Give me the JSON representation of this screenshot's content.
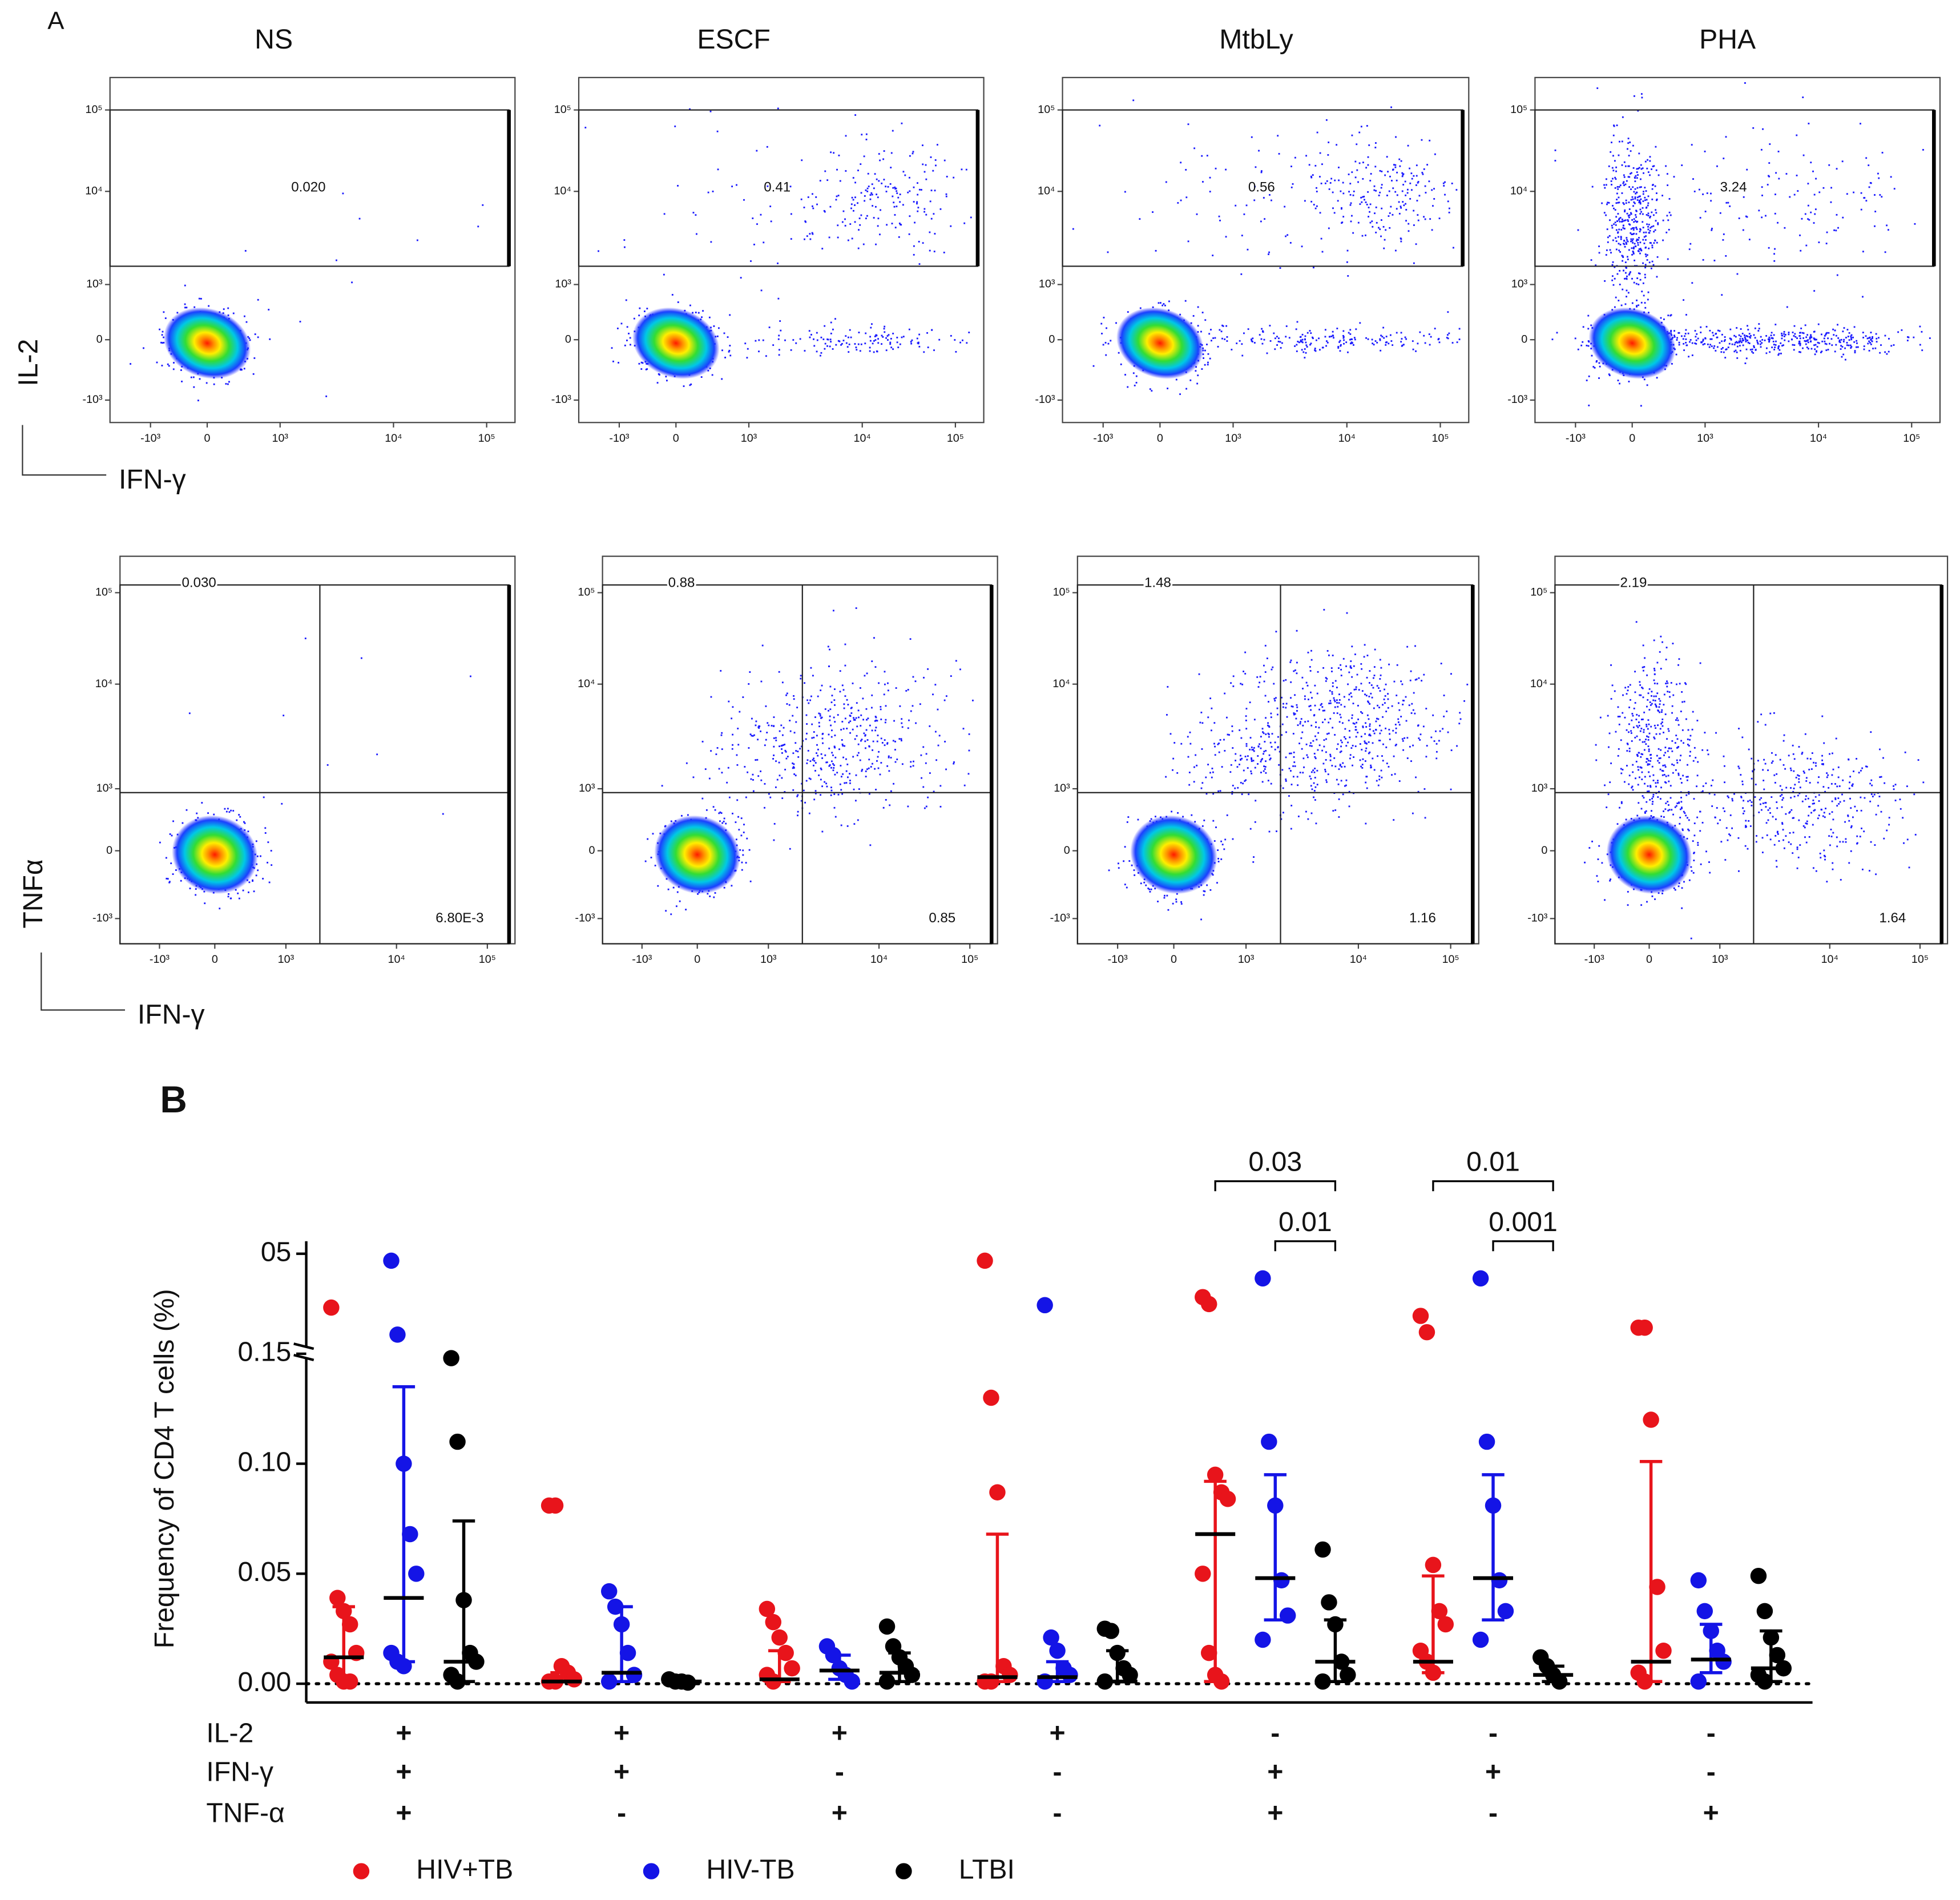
{
  "panel_labels": {
    "a": "A",
    "b": "B"
  },
  "flow_panel": {
    "stimuli": [
      "NS",
      "ESCF",
      "MtbLy",
      "PHA"
    ],
    "axis_tick_labels": [
      "-10³",
      "0",
      "10³",
      "10⁴",
      "10⁵"
    ],
    "x_axis_label": "IFN-γ",
    "rows": [
      {
        "y_axis_label": "IL-2",
        "gate_values": [
          "0.020",
          "0.41",
          "0.56",
          "3.24"
        ]
      },
      {
        "y_axis_label": "TNFα",
        "upper_left_values": [
          "0.030",
          "0.88",
          "1.48",
          "2.19"
        ],
        "lower_right_values": [
          "6.80E-3",
          "0.85",
          "1.16",
          "1.64"
        ]
      }
    ]
  },
  "chart_data": {
    "type": "dot",
    "y_label": "Frequency of CD4 T cells  (%)",
    "ylim": [
      0,
      0.5
    ],
    "axis_break": 0.15,
    "yticks": [
      {
        "value": 0,
        "label": "0.00"
      },
      {
        "value": 0.05,
        "label": "0.05"
      },
      {
        "value": 0.1,
        "label": "0.10"
      },
      0.15,
      {
        "value": 0.5,
        "label": "05"
      }
    ],
    "cytokines": [
      {
        "name": "IL-2",
        "signs": [
          "+",
          "+",
          "+",
          "+",
          "-",
          "-",
          "-"
        ]
      },
      {
        "name": "IFN-γ",
        "signs": [
          "+",
          "+",
          "-",
          "-",
          "+",
          "+",
          "-"
        ]
      },
      {
        "name": "TNF-α",
        "signs": [
          "+",
          "-",
          "+",
          "-",
          "+",
          "-",
          "+"
        ]
      }
    ],
    "series": [
      {
        "name": "HIV+TB",
        "color": "#e8141b",
        "values": [
          [
            0.299,
            0.039,
            0.033,
            0.027,
            0.014,
            0.01,
            0.004,
            0.001,
            0.001
          ],
          [
            0.081,
            0.081,
            0.008,
            0.005,
            0.002,
            0.001,
            0.001
          ],
          [
            0.034,
            0.028,
            0.021,
            0.014,
            0.007,
            0.004,
            0.001
          ],
          [
            0.474,
            0.13,
            0.087,
            0.008,
            0.004,
            0.001,
            0.001
          ],
          [
            0.338,
            0.312,
            0.095,
            0.087,
            0.084,
            0.05,
            0.014,
            0.004,
            0.001
          ],
          [
            0.268,
            0.207,
            0.054,
            0.033,
            0.027,
            0.015,
            0.01,
            0.005
          ],
          [
            0.224,
            0.224,
            0.12,
            0.044,
            0.015,
            0.005,
            0.001
          ]
        ],
        "medians": [
          0.012,
          0.001,
          0.002,
          0.003,
          0.068,
          0.01,
          0.01
        ],
        "error_low": [
          0.002,
          0.001,
          0.001,
          0.001,
          0.001,
          0.005,
          0.001
        ],
        "error_high": [
          0.035,
          0.005,
          0.015,
          0.068,
          0.092,
          0.049,
          0.101
        ]
      },
      {
        "name": "HIV-TB",
        "color": "#1414e6",
        "values": [
          [
            0.474,
            0.198,
            0.1,
            0.068,
            0.05,
            0.014,
            0.01,
            0.008
          ],
          [
            0.042,
            0.035,
            0.027,
            0.014,
            0.004,
            0.001
          ],
          [
            0.017,
            0.013,
            0.007,
            0.004,
            0.001
          ],
          [
            0.308,
            0.021,
            0.015,
            0.007,
            0.004,
            0.001
          ],
          [
            0.408,
            0.11,
            0.081,
            0.047,
            0.031,
            0.02
          ],
          [
            0.408,
            0.11,
            0.081,
            0.047,
            0.033,
            0.02
          ],
          [
            0.047,
            0.033,
            0.024,
            0.015,
            0.01,
            0.001
          ]
        ],
        "medians": [
          0.039,
          0.005,
          0.006,
          0.003,
          0.048,
          0.048,
          0.011
        ],
        "error_low": [
          0.01,
          0.001,
          0.002,
          0.001,
          0.029,
          0.029,
          0.005
        ],
        "error_high": [
          0.135,
          0.035,
          0.013,
          0.01,
          0.095,
          0.095,
          0.027
        ]
      },
      {
        "name": "LTBI",
        "color": "#000000",
        "values": [
          [
            0.148,
            0.11,
            0.038,
            0.014,
            0.01,
            0.004,
            0.001
          ],
          [
            0.002,
            0.001,
            0.001,
            0.0005
          ],
          [
            0.026,
            0.017,
            0.012,
            0.008,
            0.004,
            0.001
          ],
          [
            0.025,
            0.024,
            0.014,
            0.007,
            0.004,
            0.001
          ],
          [
            0.061,
            0.037,
            0.027,
            0.01,
            0.004,
            0.001
          ],
          [
            0.012,
            0.008,
            0.004,
            0.001
          ],
          [
            0.049,
            0.033,
            0.021,
            0.013,
            0.007,
            0.004,
            0.001
          ]
        ],
        "medians": [
          0.01,
          0.001,
          0.005,
          0.001,
          0.01,
          0.004,
          0.007
        ],
        "error_low": [
          0.001,
          0.0005,
          0.001,
          0.001,
          0.001,
          0.001,
          0.001
        ],
        "error_high": [
          0.074,
          0.002,
          0.014,
          0.015,
          0.029,
          0.008,
          0.024
        ]
      }
    ],
    "comparisons": [
      {
        "category": 4,
        "series": [
          0,
          2
        ],
        "label": "0.03"
      },
      {
        "category": 4,
        "series": [
          1,
          2
        ],
        "label": "0.01"
      },
      {
        "category": 5,
        "series": [
          0,
          2
        ],
        "label": "0.01"
      },
      {
        "category": 5,
        "series": [
          1,
          2
        ],
        "label": "0.001"
      }
    ]
  }
}
